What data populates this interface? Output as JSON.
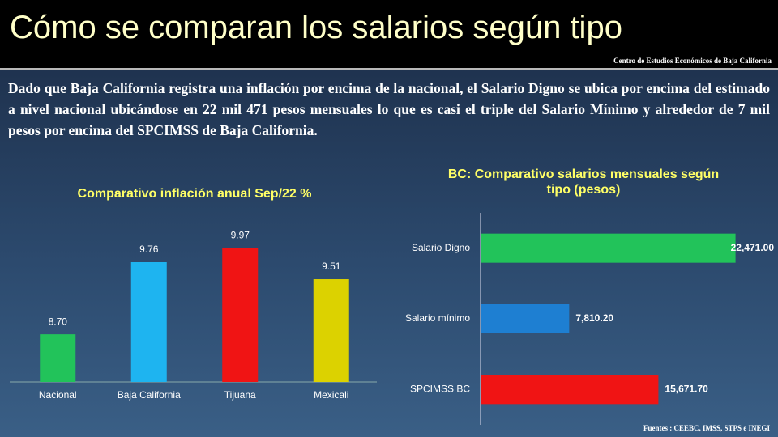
{
  "header": {
    "title": "Cómo se comparan los salarios según tipo",
    "subtitle": "Centro de Estudios Económicos de Baja California"
  },
  "body": {
    "text": "Dado que Baja California registra una inflación por encima de la nacional, el Salario Digno se ubica por encima del estimado a nivel nacional ubicándose en 22 mil 471 pesos mensuales lo que es casi el triple del Salario Mínimo y alrededor de 7 mil pesos por encima del SPCIMSS de Baja California."
  },
  "source": "Fuentes : CEEBC, IMSS, STPS e INEGI",
  "chart_data": [
    {
      "type": "bar",
      "title": "Comparativo inflación anual Sep/22 %",
      "categories": [
        "Nacional",
        "Baja California",
        "Tijuana",
        "Mexicali"
      ],
      "values": [
        8.7,
        9.76,
        9.97,
        9.51
      ],
      "value_labels": [
        "8.70",
        "9.76",
        "9.97",
        "9.51"
      ],
      "colors": [
        "#22c35a",
        "#1eb4f0",
        "#f01414",
        "#dcd200"
      ],
      "ylim": [
        8,
        10.2
      ]
    },
    {
      "type": "barh",
      "title": "BC: Comparativo salarios mensuales según tipo (pesos)",
      "categories": [
        "Salario Digno",
        "Salario mínimo",
        "SPCIMSS BC"
      ],
      "values": [
        22471,
        7810.2,
        15671.7
      ],
      "value_labels": [
        "22,471.00",
        "7,810.20",
        "15,671.70"
      ],
      "colors": [
        "#22c35a",
        "#1e7fd2",
        "#f01414"
      ],
      "xlim": [
        0,
        24000
      ]
    }
  ]
}
